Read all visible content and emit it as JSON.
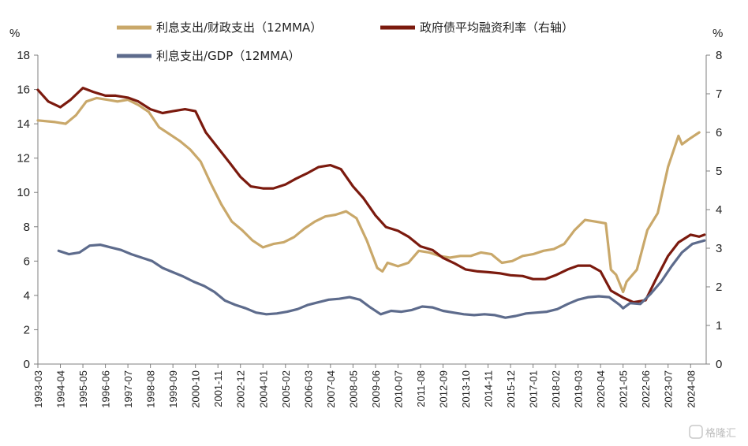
{
  "chart_data": {
    "type": "line",
    "y_left_unit": "%",
    "y_right_unit": "%",
    "ylim_left": [
      0,
      18
    ],
    "ylim_right": [
      0,
      8
    ],
    "yticks_left": [
      "0",
      "2",
      "4",
      "6",
      "8",
      "10",
      "12",
      "14",
      "16",
      "18"
    ],
    "yticks_right": [
      "0",
      "1",
      "2",
      "3",
      "4",
      "5",
      "6",
      "7",
      "8"
    ],
    "x_tick_labels": [
      "1993-03",
      "1994-04",
      "1995-05",
      "1996-06",
      "1997-07",
      "1998-08",
      "1999-09",
      "2000-10",
      "2001-11",
      "2002-12",
      "2004-01",
      "2005-02",
      "2006-03",
      "2007-04",
      "2008-05",
      "2009-06",
      "2010-07",
      "2011-08",
      "2012-09",
      "2013-10",
      "2014-11",
      "2015-12",
      "2017-01",
      "2018-02",
      "2019-03",
      "2020-04",
      "2021-05",
      "2022-06",
      "2023-07",
      "2024-08"
    ],
    "series": [
      {
        "name": "利息支出/财政支出（12MMA）",
        "axis": "left",
        "color": "#C9A86A",
        "points": [
          [
            "1993-03",
            14.2
          ],
          [
            "1994-01",
            14.1
          ],
          [
            "1994-07",
            14.0
          ],
          [
            "1995-01",
            14.5
          ],
          [
            "1995-07",
            15.3
          ],
          [
            "1996-01",
            15.5
          ],
          [
            "1996-07",
            15.4
          ],
          [
            "1997-01",
            15.3
          ],
          [
            "1997-07",
            15.4
          ],
          [
            "1998-01",
            15.1
          ],
          [
            "1998-07",
            14.7
          ],
          [
            "1999-01",
            13.8
          ],
          [
            "1999-07",
            13.4
          ],
          [
            "2000-01",
            13.0
          ],
          [
            "2000-07",
            12.5
          ],
          [
            "2001-01",
            11.8
          ],
          [
            "2001-07",
            10.5
          ],
          [
            "2002-01",
            9.3
          ],
          [
            "2002-07",
            8.3
          ],
          [
            "2003-01",
            7.8
          ],
          [
            "2003-07",
            7.2
          ],
          [
            "2004-01",
            6.8
          ],
          [
            "2004-07",
            7.0
          ],
          [
            "2005-01",
            7.1
          ],
          [
            "2005-07",
            7.4
          ],
          [
            "2006-01",
            7.9
          ],
          [
            "2006-07",
            8.3
          ],
          [
            "2007-01",
            8.6
          ],
          [
            "2007-07",
            8.7
          ],
          [
            "2008-01",
            8.9
          ],
          [
            "2008-07",
            8.5
          ],
          [
            "2009-01",
            7.2
          ],
          [
            "2009-07",
            5.6
          ],
          [
            "2009-10",
            5.4
          ],
          [
            "2010-01",
            5.9
          ],
          [
            "2010-07",
            5.7
          ],
          [
            "2011-01",
            5.9
          ],
          [
            "2011-07",
            6.6
          ],
          [
            "2012-01",
            6.5
          ],
          [
            "2012-07",
            6.3
          ],
          [
            "2013-01",
            6.2
          ],
          [
            "2013-07",
            6.3
          ],
          [
            "2014-01",
            6.3
          ],
          [
            "2014-07",
            6.5
          ],
          [
            "2015-01",
            6.4
          ],
          [
            "2015-07",
            5.9
          ],
          [
            "2016-01",
            6.0
          ],
          [
            "2016-07",
            6.3
          ],
          [
            "2017-01",
            6.4
          ],
          [
            "2017-07",
            6.6
          ],
          [
            "2018-01",
            6.7
          ],
          [
            "2018-07",
            7.0
          ],
          [
            "2019-01",
            7.8
          ],
          [
            "2019-07",
            8.4
          ],
          [
            "2020-01",
            8.3
          ],
          [
            "2020-07",
            8.2
          ],
          [
            "2020-10",
            5.5
          ],
          [
            "2021-01",
            5.2
          ],
          [
            "2021-05",
            4.2
          ],
          [
            "2021-07",
            4.8
          ],
          [
            "2022-01",
            5.5
          ],
          [
            "2022-07",
            7.8
          ],
          [
            "2023-01",
            8.8
          ],
          [
            "2023-07",
            11.5
          ],
          [
            "2024-01",
            13.3
          ],
          [
            "2024-03",
            12.8
          ],
          [
            "2024-07",
            13.1
          ],
          [
            "2025-01",
            13.5
          ]
        ]
      },
      {
        "name": "政府债平均融资利率（右轴）",
        "axis": "right",
        "color": "#7B1A0E",
        "points": [
          [
            "1993-03",
            7.1
          ],
          [
            "1993-09",
            6.8
          ],
          [
            "1994-04",
            6.65
          ],
          [
            "1994-10",
            6.85
          ],
          [
            "1995-05",
            7.15
          ],
          [
            "1995-11",
            7.05
          ],
          [
            "1996-06",
            6.95
          ],
          [
            "1996-12",
            6.95
          ],
          [
            "1997-07",
            6.9
          ],
          [
            "1998-01",
            6.8
          ],
          [
            "1998-08",
            6.6
          ],
          [
            "1999-03",
            6.5
          ],
          [
            "1999-09",
            6.55
          ],
          [
            "2000-04",
            6.6
          ],
          [
            "2000-10",
            6.55
          ],
          [
            "2001-04",
            6.0
          ],
          [
            "2001-11",
            5.6
          ],
          [
            "2002-06",
            5.2
          ],
          [
            "2002-12",
            4.85
          ],
          [
            "2003-06",
            4.6
          ],
          [
            "2004-01",
            4.55
          ],
          [
            "2004-07",
            4.55
          ],
          [
            "2005-02",
            4.65
          ],
          [
            "2005-08",
            4.8
          ],
          [
            "2006-03",
            4.95
          ],
          [
            "2006-09",
            5.1
          ],
          [
            "2007-04",
            5.15
          ],
          [
            "2007-10",
            5.05
          ],
          [
            "2008-05",
            4.6
          ],
          [
            "2008-11",
            4.3
          ],
          [
            "2009-06",
            3.85
          ],
          [
            "2009-12",
            3.55
          ],
          [
            "2010-07",
            3.45
          ],
          [
            "2011-01",
            3.3
          ],
          [
            "2011-08",
            3.05
          ],
          [
            "2012-03",
            2.95
          ],
          [
            "2012-09",
            2.75
          ],
          [
            "2013-04",
            2.6
          ],
          [
            "2013-10",
            2.45
          ],
          [
            "2014-05",
            2.4
          ],
          [
            "2014-11",
            2.38
          ],
          [
            "2015-06",
            2.35
          ],
          [
            "2015-12",
            2.3
          ],
          [
            "2016-07",
            2.28
          ],
          [
            "2017-01",
            2.2
          ],
          [
            "2017-08",
            2.2
          ],
          [
            "2018-02",
            2.3
          ],
          [
            "2018-09",
            2.45
          ],
          [
            "2019-03",
            2.55
          ],
          [
            "2019-10",
            2.55
          ],
          [
            "2020-04",
            2.4
          ],
          [
            "2020-10",
            1.9
          ],
          [
            "2021-05",
            1.72
          ],
          [
            "2021-11",
            1.6
          ],
          [
            "2022-06",
            1.65
          ],
          [
            "2022-12",
            2.2
          ],
          [
            "2023-07",
            2.8
          ],
          [
            "2024-01",
            3.15
          ],
          [
            "2024-08",
            3.35
          ],
          [
            "2025-01",
            3.3
          ],
          [
            "2025-04",
            3.35
          ]
        ]
      },
      {
        "name": "利息支出/GDP（12MMA）",
        "axis": "left",
        "color": "#5D6B8C",
        "points": [
          [
            "1994-03",
            6.6
          ],
          [
            "1994-09",
            6.4
          ],
          [
            "1995-03",
            6.5
          ],
          [
            "1995-09",
            6.9
          ],
          [
            "1996-03",
            6.95
          ],
          [
            "1996-09",
            6.8
          ],
          [
            "1997-03",
            6.65
          ],
          [
            "1997-09",
            6.4
          ],
          [
            "1998-03",
            6.2
          ],
          [
            "1998-09",
            6.0
          ],
          [
            "1999-03",
            5.6
          ],
          [
            "1999-09",
            5.35
          ],
          [
            "2000-03",
            5.1
          ],
          [
            "2000-09",
            4.8
          ],
          [
            "2001-03",
            4.55
          ],
          [
            "2001-09",
            4.2
          ],
          [
            "2002-03",
            3.7
          ],
          [
            "2002-09",
            3.45
          ],
          [
            "2003-03",
            3.25
          ],
          [
            "2003-09",
            3.0
          ],
          [
            "2004-03",
            2.9
          ],
          [
            "2004-09",
            2.95
          ],
          [
            "2005-03",
            3.05
          ],
          [
            "2005-09",
            3.2
          ],
          [
            "2006-03",
            3.45
          ],
          [
            "2006-09",
            3.6
          ],
          [
            "2007-03",
            3.75
          ],
          [
            "2007-09",
            3.8
          ],
          [
            "2008-03",
            3.9
          ],
          [
            "2008-09",
            3.75
          ],
          [
            "2009-03",
            3.3
          ],
          [
            "2009-09",
            2.9
          ],
          [
            "2010-03",
            3.1
          ],
          [
            "2010-09",
            3.05
          ],
          [
            "2011-03",
            3.15
          ],
          [
            "2011-09",
            3.35
          ],
          [
            "2012-03",
            3.3
          ],
          [
            "2012-09",
            3.1
          ],
          [
            "2013-03",
            3.0
          ],
          [
            "2013-09",
            2.9
          ],
          [
            "2014-03",
            2.85
          ],
          [
            "2014-09",
            2.9
          ],
          [
            "2015-03",
            2.85
          ],
          [
            "2015-09",
            2.7
          ],
          [
            "2016-03",
            2.8
          ],
          [
            "2016-09",
            2.95
          ],
          [
            "2017-03",
            3.0
          ],
          [
            "2017-09",
            3.05
          ],
          [
            "2018-03",
            3.2
          ],
          [
            "2018-09",
            3.5
          ],
          [
            "2019-03",
            3.75
          ],
          [
            "2019-09",
            3.9
          ],
          [
            "2020-03",
            3.95
          ],
          [
            "2020-09",
            3.9
          ],
          [
            "2021-03",
            3.45
          ],
          [
            "2021-05",
            3.25
          ],
          [
            "2021-09",
            3.55
          ],
          [
            "2022-03",
            3.5
          ],
          [
            "2022-09",
            4.1
          ],
          [
            "2023-03",
            4.8
          ],
          [
            "2023-09",
            5.7
          ],
          [
            "2024-03",
            6.5
          ],
          [
            "2024-09",
            7.0
          ],
          [
            "2025-04",
            7.2
          ]
        ]
      }
    ]
  },
  "watermark": "格隆汇"
}
